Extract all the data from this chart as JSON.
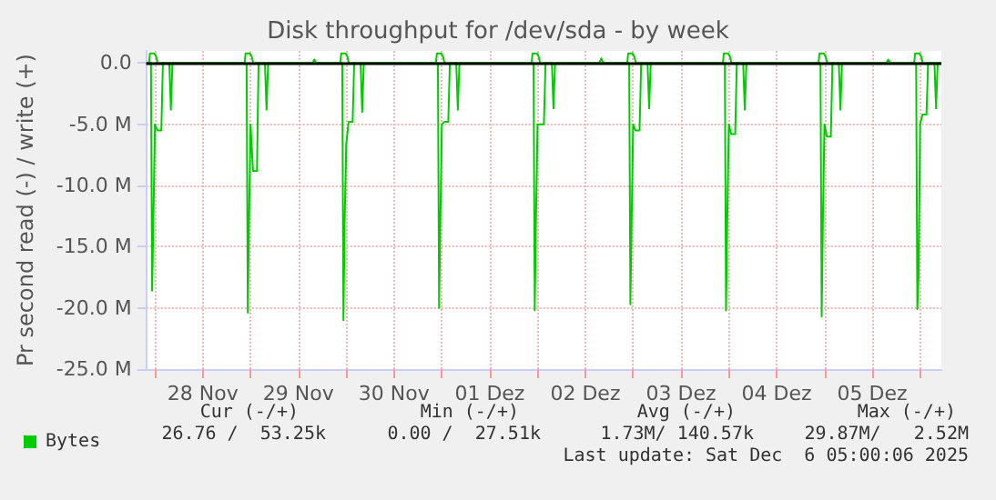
{
  "chart_data": {
    "type": "line",
    "title": "Disk throughput for /dev/sda - by week",
    "ylabel": "Pr second read (-) / write (+)",
    "xlim": [
      "2025-11-27T21:50",
      "2025-12-06T05:20"
    ],
    "xticks": [
      {
        "value": "2025-11-28T00:00",
        "label": null
      },
      {
        "value": "2025-11-28T12:00",
        "label": "28 Nov"
      },
      {
        "value": "2025-11-29T00:00",
        "label": null
      },
      {
        "value": "2025-11-29T12:00",
        "label": "29 Nov"
      },
      {
        "value": "2025-11-30T00:00",
        "label": null
      },
      {
        "value": "2025-11-30T12:00",
        "label": "30 Nov"
      },
      {
        "value": "2025-12-01T00:00",
        "label": null
      },
      {
        "value": "2025-12-01T12:00",
        "label": "01 Dez"
      },
      {
        "value": "2025-12-02T00:00",
        "label": null
      },
      {
        "value": "2025-12-02T12:00",
        "label": "02 Dez"
      },
      {
        "value": "2025-12-03T00:00",
        "label": null
      },
      {
        "value": "2025-12-03T12:00",
        "label": "03 Dez"
      },
      {
        "value": "2025-12-04T00:00",
        "label": null
      },
      {
        "value": "2025-12-04T12:00",
        "label": "04 Dez"
      },
      {
        "value": "2025-12-05T00:00",
        "label": null
      },
      {
        "value": "2025-12-05T12:00",
        "label": "05 Dez"
      },
      {
        "value": "2025-12-06T00:00",
        "label": null
      }
    ],
    "ylim": [
      -25,
      1
    ],
    "yticks": [
      {
        "value": -25,
        "label": "-25.0 M"
      },
      {
        "value": -20,
        "label": "-20.0 M"
      },
      {
        "value": -15,
        "label": "-15.0 M"
      },
      {
        "value": -10,
        "label": "-10.0 M"
      },
      {
        "value": -5,
        "label": "-5.0 M"
      },
      {
        "value": 0,
        "label": "0.0"
      }
    ],
    "grid": true,
    "legend": "bottom left",
    "marker": "none",
    "line_style": "solid",
    "ref_lines": [
      {
        "axis": "y",
        "value": 0,
        "color": "#000000"
      }
    ],
    "series": [
      {
        "name": "Bytes",
        "color": "#00cc00",
        "x": [
          "2025-11-27T21:50",
          "2025-11-27T23:00",
          "2025-11-27T23:18",
          "2025-11-27T23:36",
          "2025-11-28T00:00",
          "2025-11-28T00:36",
          "2025-11-28T01:36",
          "2025-11-28T02:00",
          "2025-11-28T03:36",
          "2025-11-28T04:00",
          "2025-11-28T04:24",
          "2025-11-28T23:00",
          "2025-11-28T23:18",
          "2025-11-28T23:36",
          "2025-11-29T00:00",
          "2025-11-29T00:36",
          "2025-11-29T01:36",
          "2025-11-29T02:00",
          "2025-11-29T03:36",
          "2025-11-29T04:00",
          "2025-11-29T04:24",
          "2025-11-29T23:00",
          "2025-11-29T23:18",
          "2025-11-29T23:36",
          "2025-11-30T00:00",
          "2025-11-30T00:36",
          "2025-11-30T01:36",
          "2025-11-30T02:00",
          "2025-11-30T03:36",
          "2025-11-30T04:00",
          "2025-11-30T04:24",
          "2025-11-30T23:00",
          "2025-11-30T23:18",
          "2025-11-30T23:36",
          "2025-12-01T00:00",
          "2025-12-01T00:36",
          "2025-12-01T01:36",
          "2025-12-01T02:00",
          "2025-12-01T03:36",
          "2025-12-01T04:00",
          "2025-12-01T04:24",
          "2025-12-01T23:00",
          "2025-12-01T23:18",
          "2025-12-01T23:36",
          "2025-12-02T00:00",
          "2025-12-02T00:36",
          "2025-12-02T01:36",
          "2025-12-02T02:00",
          "2025-12-02T03:36",
          "2025-12-02T04:00",
          "2025-12-02T04:24",
          "2025-12-02T23:00",
          "2025-12-02T23:18",
          "2025-12-02T23:36",
          "2025-12-03T00:00",
          "2025-12-03T00:36",
          "2025-12-03T01:36",
          "2025-12-03T02:00",
          "2025-12-03T03:36",
          "2025-12-03T04:00",
          "2025-12-03T04:24",
          "2025-12-03T23:00",
          "2025-12-03T23:18",
          "2025-12-03T23:36",
          "2025-12-04T00:00",
          "2025-12-04T00:36",
          "2025-12-04T01:36",
          "2025-12-04T02:00",
          "2025-12-04T03:36",
          "2025-12-04T04:00",
          "2025-12-04T04:24",
          "2025-12-04T23:00",
          "2025-12-04T23:18",
          "2025-12-04T23:36",
          "2025-12-05T00:00",
          "2025-12-05T00:36",
          "2025-12-05T01:36",
          "2025-12-05T02:00",
          "2025-12-05T03:36",
          "2025-12-05T04:00",
          "2025-12-05T04:24",
          "2025-12-05T23:00",
          "2025-12-05T23:18",
          "2025-12-05T23:36",
          "2025-12-06T00:00",
          "2025-12-06T00:36",
          "2025-12-06T01:36",
          "2025-12-06T02:00",
          "2025-12-06T03:36",
          "2025-12-06T04:00",
          "2025-12-06T04:24",
          "2025-12-06T05:20"
        ],
        "values": [
          0,
          0,
          -18.6,
          -13,
          -5,
          -5.5,
          -5.5,
          0,
          0,
          -3.8,
          0,
          0,
          -20.4,
          -13,
          -5,
          -8.8,
          -8.8,
          0,
          0,
          -3.8,
          0,
          0,
          -21.0,
          -13,
          -6.6,
          -4.8,
          -4.8,
          0,
          0,
          -4.0,
          0,
          0,
          -20.0,
          -13,
          -5,
          -4.8,
          -4.8,
          0,
          0,
          -3.8,
          0,
          0,
          -20.2,
          -13,
          -5,
          -5.0,
          -5.0,
          0,
          0,
          -3.7,
          0,
          0,
          -19.7,
          -13,
          -5,
          -5.5,
          -5.5,
          0,
          0,
          -3.7,
          0,
          0,
          -20.2,
          -13,
          -5,
          -5.8,
          -5.8,
          0,
          0,
          -3.8,
          0,
          0,
          -20.7,
          -13,
          -5,
          -6.0,
          -6.0,
          0,
          0,
          -3.8,
          0,
          0,
          -20.1,
          -17.5,
          -5,
          -4.2,
          -4.2,
          0,
          0,
          -3.7,
          0,
          0
        ]
      },
      {
        "color": "#00cc00",
        "x": [
          "2025-11-27T21:50",
          "2025-11-27T22:30",
          "2025-11-27T22:45",
          "2025-11-27T23:50",
          "2025-11-28T00:20",
          "2025-11-28T00:40",
          "2025-11-28T22:30",
          "2025-11-28T22:45",
          "2025-11-28T23:50",
          "2025-11-29T00:20",
          "2025-11-29T00:40",
          "2025-11-29T15:30",
          "2025-11-29T16:00",
          "2025-11-29T16:30",
          "2025-11-29T22:30",
          "2025-11-29T22:45",
          "2025-11-29T23:50",
          "2025-11-30T00:20",
          "2025-11-30T00:40",
          "2025-11-30T22:30",
          "2025-11-30T22:45",
          "2025-11-30T23:50",
          "2025-12-01T00:20",
          "2025-12-01T00:40",
          "2025-12-01T22:30",
          "2025-12-01T22:45",
          "2025-12-01T23:50",
          "2025-12-02T00:20",
          "2025-12-02T00:40",
          "2025-12-02T15:30",
          "2025-12-02T16:00",
          "2025-12-02T16:30",
          "2025-12-02T22:30",
          "2025-12-02T22:45",
          "2025-12-02T23:50",
          "2025-12-03T00:20",
          "2025-12-03T00:40",
          "2025-12-03T22:30",
          "2025-12-03T22:45",
          "2025-12-03T23:50",
          "2025-12-04T00:20",
          "2025-12-04T00:40",
          "2025-12-04T22:30",
          "2025-12-04T22:45",
          "2025-12-04T23:50",
          "2025-12-05T00:20",
          "2025-12-05T00:40",
          "2025-12-05T15:30",
          "2025-12-05T16:00",
          "2025-12-05T16:30",
          "2025-12-05T22:30",
          "2025-12-05T22:45",
          "2025-12-05T23:50",
          "2025-12-06T00:20",
          "2025-12-06T00:40",
          "2025-12-06T05:20"
        ],
        "values": [
          0,
          0,
          0.8,
          0.8,
          0.5,
          0,
          0,
          0.8,
          0.8,
          0.5,
          0,
          0,
          0.3,
          0,
          0,
          0.8,
          0.8,
          0.5,
          0,
          0,
          0.8,
          0.8,
          0.5,
          0,
          0,
          0.8,
          0.8,
          0.5,
          0,
          0,
          0.4,
          0,
          0,
          0.8,
          0.8,
          0.5,
          0,
          0,
          0.8,
          0.8,
          0.5,
          0,
          0,
          0.8,
          0.8,
          0.5,
          0,
          0,
          0.3,
          0,
          0,
          0.8,
          0.8,
          0.5,
          0,
          0
        ]
      }
    ],
    "annotations": [
      "Cur (-/+)",
      "Min (-/+)",
      "Avg (-/+)",
      "Max (-/+)",
      "26.76 /  53.25k",
      "0.00 /  27.51k",
      "1.73M/ 140.57k",
      "29.87M/   2.52M",
      "Last update: Sat Dec  6 05:00:06 2025"
    ]
  }
}
